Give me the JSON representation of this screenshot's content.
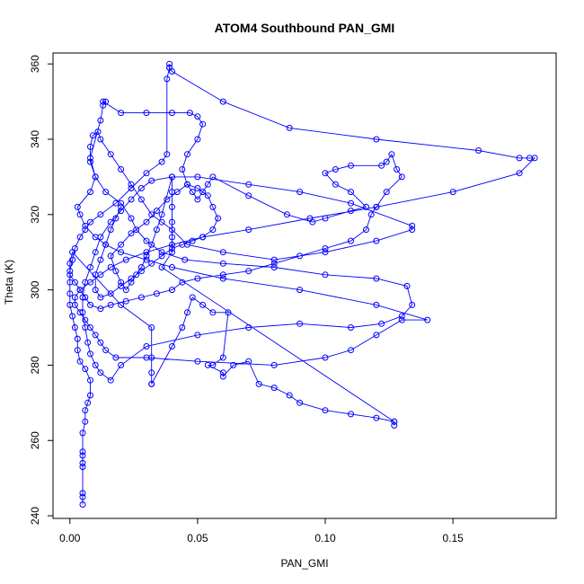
{
  "colors": {
    "series": "#0000ff",
    "axis": "#000000",
    "background": "#ffffff"
  },
  "chart_data": {
    "type": "scatter",
    "title": "ATOM4 Southbound PAN_GMI",
    "xlabel": "PAN_GMI",
    "ylabel": "Theta (K)",
    "xlim": [
      -0.0066,
      0.1904
    ],
    "ylim": [
      239.3,
      362.9
    ],
    "x_ticks": [
      0.0,
      0.05,
      0.1,
      0.15
    ],
    "x_tick_labels": [
      "0.00",
      "0.05",
      "0.10",
      "0.15"
    ],
    "y_ticks": [
      240,
      260,
      280,
      300,
      320,
      340,
      360
    ],
    "y_tick_labels": [
      "240",
      "260",
      "280",
      "300",
      "320",
      "340",
      "360"
    ],
    "grid": false,
    "marker": "open-circle",
    "connected": true,
    "series": [
      {
        "name": "",
        "points": [
          [
            0.005,
            243
          ],
          [
            0.005,
            245
          ],
          [
            0.005,
            246
          ],
          [
            0.005,
            253
          ],
          [
            0.005,
            254
          ],
          [
            0.005,
            256
          ],
          [
            0.005,
            257
          ],
          [
            0.005,
            262
          ],
          [
            0.006,
            265
          ],
          [
            0.006,
            268
          ],
          [
            0.007,
            270
          ],
          [
            0.008,
            272
          ],
          [
            0.008,
            276
          ],
          [
            0.006,
            279
          ],
          [
            0.004,
            281
          ],
          [
            0.003,
            284
          ],
          [
            0.003,
            287
          ],
          [
            0.002,
            290
          ],
          [
            0.001,
            293
          ],
          [
            0.0,
            296
          ],
          [
            0.0,
            299
          ],
          [
            0.0,
            302
          ],
          [
            0.0,
            305
          ],
          [
            0.001,
            308
          ],
          [
            0.002,
            311
          ],
          [
            0.004,
            314
          ],
          [
            0.006,
            316
          ],
          [
            0.008,
            318
          ],
          [
            0.012,
            320
          ],
          [
            0.018,
            323
          ],
          [
            0.024,
            327
          ],
          [
            0.03,
            331
          ],
          [
            0.036,
            334
          ],
          [
            0.038,
            336
          ],
          [
            0.038,
            356
          ],
          [
            0.039,
            359
          ],
          [
            0.039,
            360
          ],
          [
            0.039,
            359
          ],
          [
            0.04,
            358
          ],
          [
            0.06,
            350
          ],
          [
            0.086,
            343
          ],
          [
            0.12,
            340
          ],
          [
            0.16,
            337
          ],
          [
            0.176,
            335
          ],
          [
            0.18,
            335
          ],
          [
            0.182,
            335
          ],
          [
            0.176,
            331
          ],
          [
            0.15,
            326
          ],
          [
            0.12,
            322
          ],
          [
            0.094,
            319
          ],
          [
            0.07,
            316
          ],
          [
            0.052,
            314
          ],
          [
            0.04,
            312
          ],
          [
            0.03,
            310
          ],
          [
            0.022,
            308
          ],
          [
            0.016,
            306
          ],
          [
            0.012,
            304
          ],
          [
            0.008,
            302
          ],
          [
            0.004,
            300
          ],
          [
            0.002,
            298
          ],
          [
            0.002,
            296
          ],
          [
            0.004,
            294
          ],
          [
            0.006,
            292
          ],
          [
            0.008,
            290
          ],
          [
            0.01,
            288
          ],
          [
            0.012,
            286
          ],
          [
            0.014,
            284
          ],
          [
            0.018,
            282
          ],
          [
            0.03,
            282
          ],
          [
            0.05,
            281
          ],
          [
            0.08,
            280
          ],
          [
            0.1,
            282
          ],
          [
            0.11,
            284
          ],
          [
            0.12,
            288
          ],
          [
            0.13,
            292
          ],
          [
            0.14,
            292
          ],
          [
            0.12,
            296
          ],
          [
            0.09,
            300
          ],
          [
            0.06,
            303
          ],
          [
            0.04,
            306
          ],
          [
            0.03,
            308
          ],
          [
            0.02,
            310
          ],
          [
            0.014,
            312
          ],
          [
            0.01,
            314
          ],
          [
            0.006,
            317
          ],
          [
            0.004,
            320
          ],
          [
            0.003,
            322
          ],
          [
            0.008,
            326
          ],
          [
            0.01,
            330
          ],
          [
            0.008,
            334
          ],
          [
            0.008,
            338
          ],
          [
            0.009,
            341
          ],
          [
            0.011,
            342
          ],
          [
            0.012,
            340
          ],
          [
            0.016,
            336
          ],
          [
            0.02,
            332
          ],
          [
            0.024,
            328
          ],
          [
            0.028,
            324
          ],
          [
            0.032,
            320
          ],
          [
            0.036,
            318
          ],
          [
            0.04,
            316
          ],
          [
            0.046,
            312
          ],
          [
            0.06,
            310
          ],
          [
            0.08,
            308
          ],
          [
            0.1,
            310
          ],
          [
            0.12,
            313
          ],
          [
            0.134,
            316
          ],
          [
            0.134,
            317
          ],
          [
            0.11,
            323
          ],
          [
            0.09,
            326
          ],
          [
            0.07,
            328
          ],
          [
            0.05,
            330
          ],
          [
            0.04,
            330
          ],
          [
            0.032,
            329
          ],
          [
            0.028,
            327
          ],
          [
            0.024,
            324
          ],
          [
            0.02,
            321
          ],
          [
            0.016,
            318
          ],
          [
            0.012,
            314
          ],
          [
            0.01,
            310
          ],
          [
            0.008,
            306
          ],
          [
            0.006,
            302
          ],
          [
            0.005,
            298
          ],
          [
            0.005,
            294
          ],
          [
            0.006,
            290
          ],
          [
            0.007,
            286
          ],
          [
            0.008,
            283
          ],
          [
            0.01,
            280
          ],
          [
            0.012,
            278
          ],
          [
            0.016,
            276
          ],
          [
            0.02,
            280
          ],
          [
            0.03,
            285
          ],
          [
            0.05,
            288
          ],
          [
            0.07,
            290
          ],
          [
            0.09,
            291
          ],
          [
            0.11,
            290
          ],
          [
            0.122,
            291
          ],
          [
            0.13,
            293
          ],
          [
            0.134,
            296
          ],
          [
            0.132,
            301
          ],
          [
            0.12,
            303
          ],
          [
            0.1,
            304
          ],
          [
            0.08,
            306
          ],
          [
            0.06,
            307
          ],
          [
            0.045,
            308
          ],
          [
            0.036,
            310
          ],
          [
            0.03,
            313
          ],
          [
            0.026,
            316
          ],
          [
            0.024,
            319
          ],
          [
            0.02,
            323
          ],
          [
            0.014,
            326
          ],
          [
            0.01,
            330
          ],
          [
            0.008,
            335
          ],
          [
            0.012,
            345
          ],
          [
            0.013,
            349
          ],
          [
            0.014,
            350
          ],
          [
            0.013,
            350
          ],
          [
            0.02,
            347
          ],
          [
            0.03,
            347
          ],
          [
            0.04,
            347
          ],
          [
            0.047,
            347
          ],
          [
            0.05,
            346
          ],
          [
            0.052,
            344
          ],
          [
            0.05,
            340
          ],
          [
            0.046,
            336
          ],
          [
            0.044,
            332
          ],
          [
            0.046,
            328
          ],
          [
            0.048,
            326
          ],
          [
            0.05,
            324
          ],
          [
            0.052,
            326
          ],
          [
            0.054,
            328
          ],
          [
            0.056,
            330
          ],
          [
            0.07,
            325
          ],
          [
            0.085,
            320
          ],
          [
            0.095,
            318
          ],
          [
            0.1,
            319
          ],
          [
            0.11,
            321
          ],
          [
            0.116,
            322
          ],
          [
            0.11,
            326
          ],
          [
            0.104,
            328
          ],
          [
            0.1,
            331
          ],
          [
            0.104,
            332
          ],
          [
            0.11,
            333
          ],
          [
            0.122,
            333
          ],
          [
            0.124,
            334
          ],
          [
            0.126,
            336
          ],
          [
            0.128,
            332
          ],
          [
            0.13,
            330
          ],
          [
            0.124,
            326
          ],
          [
            0.12,
            322
          ],
          [
            0.118,
            320
          ],
          [
            0.116,
            316
          ],
          [
            0.11,
            313
          ],
          [
            0.1,
            311
          ],
          [
            0.09,
            309
          ],
          [
            0.08,
            307
          ],
          [
            0.07,
            305
          ],
          [
            0.06,
            304
          ],
          [
            0.05,
            303
          ],
          [
            0.044,
            302
          ],
          [
            0.04,
            300
          ],
          [
            0.034,
            299
          ],
          [
            0.028,
            298
          ],
          [
            0.022,
            297
          ],
          [
            0.016,
            296
          ],
          [
            0.012,
            295
          ],
          [
            0.008,
            296
          ],
          [
            0.006,
            298
          ],
          [
            0.004,
            300
          ],
          [
            0.002,
            302
          ],
          [
            0.0,
            304
          ],
          [
            0.0,
            307
          ],
          [
            0.001,
            310
          ],
          [
            0.02,
            296
          ],
          [
            0.032,
            290
          ],
          [
            0.032,
            282
          ],
          [
            0.032,
            278
          ],
          [
            0.032,
            275
          ],
          [
            0.032,
            275
          ],
          [
            0.04,
            285
          ],
          [
            0.044,
            290
          ],
          [
            0.046,
            294
          ],
          [
            0.048,
            298
          ],
          [
            0.052,
            296
          ],
          [
            0.056,
            294
          ],
          [
            0.062,
            294
          ],
          [
            0.06,
            282
          ],
          [
            0.056,
            280
          ],
          [
            0.054,
            280
          ],
          [
            0.06,
            278
          ],
          [
            0.06,
            277
          ],
          [
            0.064,
            280
          ],
          [
            0.07,
            281
          ],
          [
            0.074,
            275
          ],
          [
            0.08,
            274
          ],
          [
            0.086,
            272
          ],
          [
            0.09,
            270
          ],
          [
            0.1,
            268
          ],
          [
            0.11,
            267
          ],
          [
            0.12,
            266
          ],
          [
            0.127,
            265
          ],
          [
            0.127,
            264
          ],
          [
            0.127,
            265
          ],
          [
            0.036,
            306
          ],
          [
            0.04,
            310
          ],
          [
            0.04,
            314
          ],
          [
            0.04,
            318
          ],
          [
            0.04,
            322
          ],
          [
            0.04,
            326
          ],
          [
            0.04,
            330
          ],
          [
            0.036,
            320
          ],
          [
            0.034,
            316
          ],
          [
            0.032,
            312
          ],
          [
            0.03,
            309
          ],
          [
            0.028,
            306
          ],
          [
            0.026,
            304
          ],
          [
            0.024,
            302
          ],
          [
            0.022,
            300
          ],
          [
            0.02,
            302
          ],
          [
            0.018,
            305
          ],
          [
            0.016,
            309
          ],
          [
            0.02,
            312
          ],
          [
            0.024,
            315
          ],
          [
            0.03,
            318
          ],
          [
            0.034,
            321
          ],
          [
            0.038,
            324
          ],
          [
            0.042,
            326
          ],
          [
            0.046,
            328
          ],
          [
            0.05,
            327
          ],
          [
            0.054,
            325
          ],
          [
            0.056,
            322
          ],
          [
            0.058,
            319
          ],
          [
            0.056,
            316
          ],
          [
            0.052,
            314
          ],
          [
            0.048,
            313
          ],
          [
            0.044,
            312
          ],
          [
            0.04,
            311
          ],
          [
            0.036,
            309
          ],
          [
            0.032,
            307
          ],
          [
            0.028,
            305
          ],
          [
            0.024,
            303
          ],
          [
            0.02,
            301
          ],
          [
            0.016,
            299
          ],
          [
            0.012,
            298
          ],
          [
            0.01,
            300
          ],
          [
            0.01,
            304
          ],
          [
            0.012,
            308
          ],
          [
            0.014,
            312
          ],
          [
            0.016,
            316
          ],
          [
            0.018,
            319
          ],
          [
            0.02,
            322
          ]
        ]
      }
    ]
  }
}
